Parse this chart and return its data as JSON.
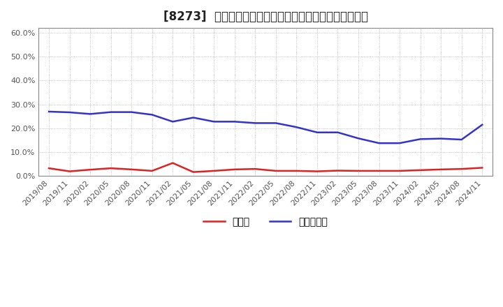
{
  "title": "[8273]  現須金、有利子負債の総資産に対する比率の推移",
  "xlabel": "",
  "ylabel": "",
  "ylim": [
    0.0,
    0.62
  ],
  "yticks": [
    0.0,
    0.1,
    0.2,
    0.3,
    0.4,
    0.5,
    0.6
  ],
  "ytick_labels": [
    "0.0%",
    "10.0%",
    "20.0%",
    "30.0%",
    "40.0%",
    "50.0%",
    "60.0%"
  ],
  "dates": [
    "2019/08",
    "2019/11",
    "2020/02",
    "2020/05",
    "2020/08",
    "2020/11",
    "2021/02",
    "2021/05",
    "2021/08",
    "2021/11",
    "2022/02",
    "2022/05",
    "2022/08",
    "2022/11",
    "2023/02",
    "2023/05",
    "2023/08",
    "2023/11",
    "2024/02",
    "2024/05",
    "2024/08",
    "2024/11"
  ],
  "cash": [
    0.033,
    0.02,
    0.027,
    0.033,
    0.028,
    0.022,
    0.055,
    0.017,
    0.022,
    0.028,
    0.03,
    0.022,
    0.022,
    0.02,
    0.023,
    0.022,
    0.022,
    0.022,
    0.025,
    0.028,
    0.03,
    0.035
  ],
  "debt": [
    0.27,
    0.267,
    0.26,
    0.268,
    0.268,
    0.257,
    0.228,
    0.245,
    0.228,
    0.228,
    0.222,
    0.222,
    0.205,
    0.183,
    0.183,
    0.158,
    0.138,
    0.138,
    0.155,
    0.157,
    0.153,
    0.215
  ],
  "cash_color": "#dd2222",
  "debt_color": "#3333cc",
  "legend_cash": "現須金",
  "legend_debt": "有利子負債",
  "background_color": "#ffffff",
  "grid_color": "#aaaaaa",
  "title_fontsize": 12,
  "tick_fontsize": 8,
  "legend_fontsize": 10
}
